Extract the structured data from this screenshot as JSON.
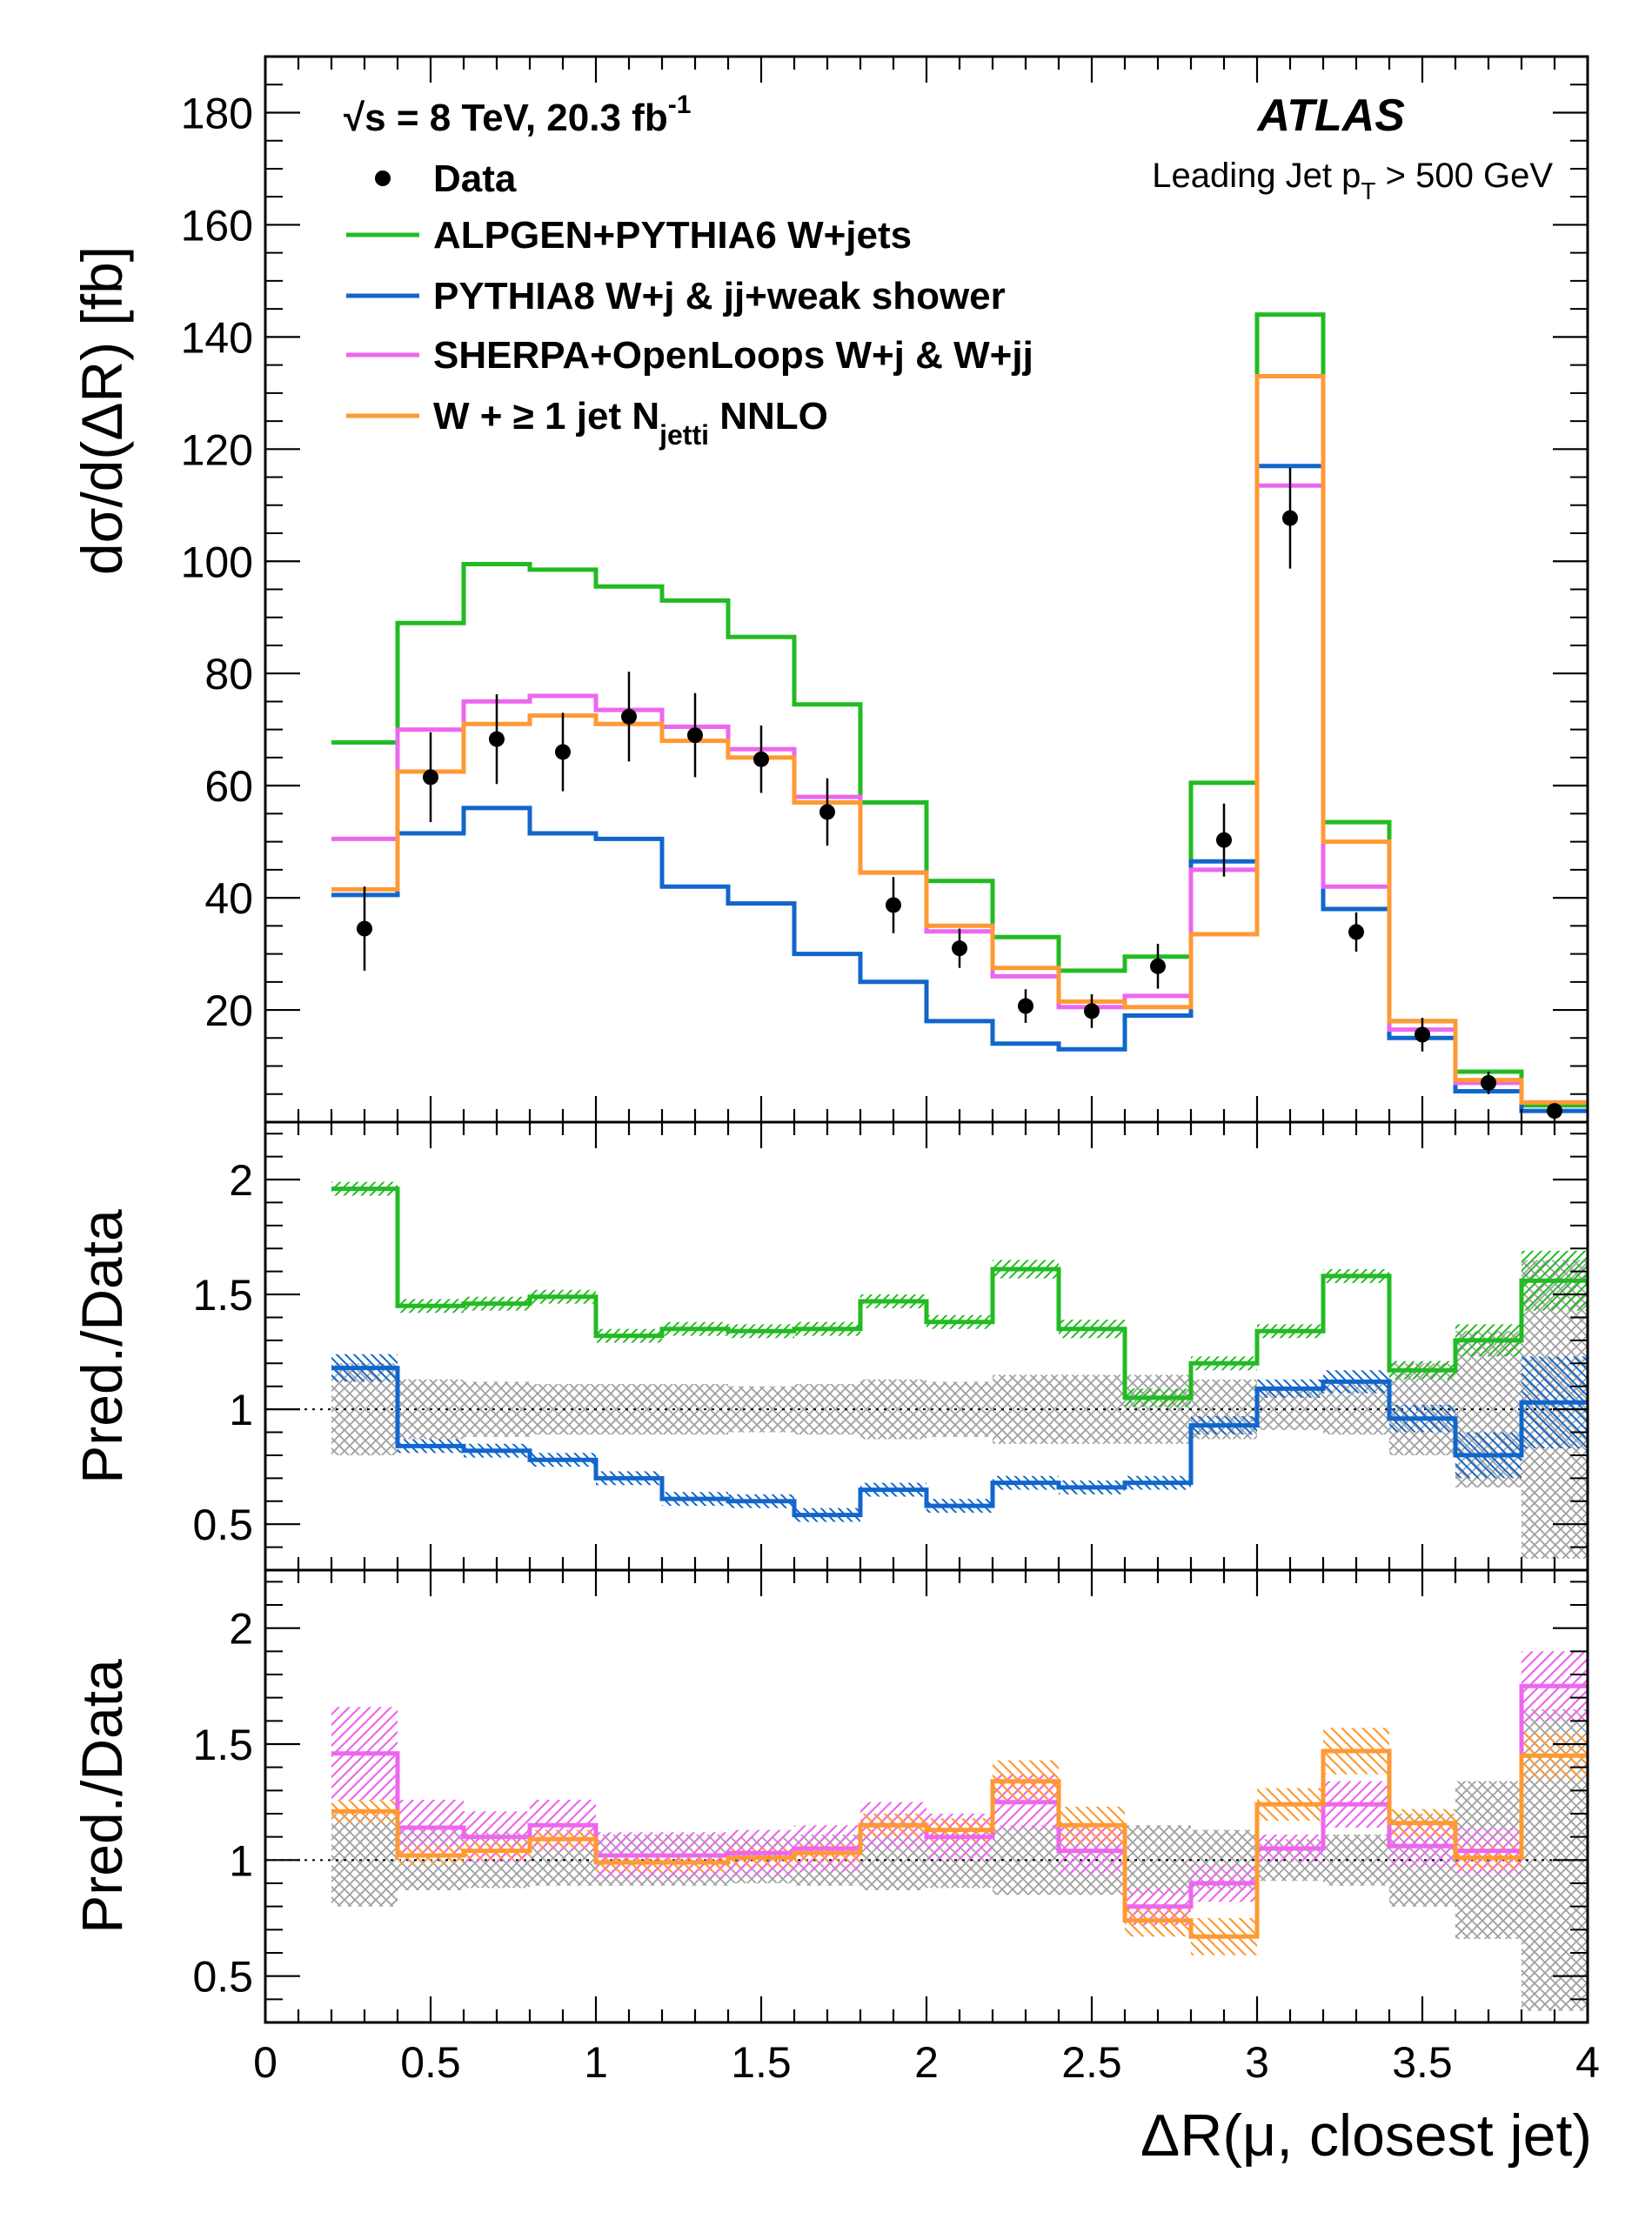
{
  "chart_data": {
    "type": "step-histogram",
    "bin_edges": [
      0.2,
      0.4,
      0.6,
      0.8,
      1.0,
      1.2,
      1.4,
      1.6,
      1.8,
      2.0,
      2.2,
      2.4,
      2.6,
      2.8,
      3.0,
      3.2,
      3.4,
      3.6,
      3.8,
      4.0
    ],
    "xlabel": "ΔR(μ, closest jet)",
    "xlim": [
      0,
      4
    ],
    "x_ticks": [
      "0",
      "0.5",
      "1",
      "1.5",
      "2",
      "2.5",
      "3",
      "3.5",
      "4"
    ],
    "x_tick_values": [
      0,
      0.5,
      1,
      1.5,
      2,
      2.5,
      3,
      3.5,
      4
    ],
    "main_panel": {
      "ylabel": "dσ/d(ΔR) [fb]",
      "ylim": [
        0,
        190
      ],
      "y_ticks": [
        "20",
        "40",
        "60",
        "80",
        "100",
        "120",
        "140",
        "160",
        "180"
      ],
      "y_tick_values": [
        20,
        40,
        60,
        80,
        100,
        120,
        140,
        160,
        180
      ],
      "annotation_energy": "√s = 8 TeV, 20.3 fb",
      "annotation_lumi_exp": "-1",
      "atlas_label": "ATLAS",
      "cut_label_prefix": "Leading Jet p",
      "cut_label_sub": "T",
      "cut_label_suffix": " > 500 GeV",
      "legend": [
        {
          "label": "Data",
          "kind": "marker"
        },
        {
          "label": "ALPGEN+PYTHIA6 W+jets",
          "kind": "line",
          "color": "#22bb22"
        },
        {
          "label": "PYTHIA8 W+j & jj+weak shower",
          "kind": "line",
          "color": "#1166cc"
        },
        {
          "label": "SHERPA+OpenLoops W+j & W+jj",
          "kind": "line",
          "color": "#ee66ee"
        },
        {
          "label": "W + ≥ 1 jet N",
          "label_sub": "jetti",
          "label_suffix": " NNLO",
          "kind": "line",
          "color": "#ff9933"
        }
      ],
      "data": {
        "name": "Data",
        "x": [
          0.3,
          0.5,
          0.7,
          0.9,
          1.1,
          1.3,
          1.5,
          1.7,
          1.9,
          2.1,
          2.3,
          2.5,
          2.7,
          2.9,
          3.1,
          3.3,
          3.5,
          3.7,
          3.9
        ],
        "y": [
          34.5,
          61.5,
          68.3,
          66.0,
          72.3,
          69.0,
          64.7,
          55.3,
          38.7,
          31.0,
          20.7,
          19.8,
          27.8,
          50.3,
          107.7,
          33.9,
          15.6,
          7.0,
          2.0
        ],
        "err": [
          7.5,
          8.0,
          8.0,
          7.0,
          8.0,
          7.5,
          6.0,
          6.0,
          5.0,
          3.5,
          3.0,
          3.0,
          4.0,
          6.5,
          9.0,
          3.5,
          3.0,
          2.0,
          1.0
        ]
      },
      "series": [
        {
          "name": "ALPGEN+PYTHIA6 W+jets",
          "color": "#22bb22",
          "values": [
            67.7,
            89.0,
            99.5,
            98.5,
            95.5,
            93.0,
            86.5,
            74.5,
            57.0,
            43.0,
            33.0,
            27.0,
            29.5,
            60.5,
            144.0,
            53.5,
            18.0,
            9.0,
            3.0
          ]
        },
        {
          "name": "PYTHIA8 W+j & jj+weak shower",
          "color": "#1166cc",
          "values": [
            40.5,
            51.5,
            56.0,
            51.5,
            50.5,
            42.0,
            39.0,
            30.0,
            25.0,
            18.0,
            14.0,
            13.0,
            19.0,
            46.5,
            117.0,
            38.0,
            15.0,
            5.5,
            2.0
          ]
        },
        {
          "name": "SHERPA+OpenLoops W+j & W+jj",
          "color": "#ee66ee",
          "values": [
            50.5,
            70.0,
            75.0,
            76.0,
            73.5,
            70.5,
            66.5,
            58.0,
            44.5,
            34.0,
            26.0,
            20.5,
            22.5,
            45.0,
            113.5,
            42.0,
            16.5,
            7.0,
            3.5
          ]
        },
        {
          "name": "W + ≥ 1 jet Njetti NNLO",
          "color": "#ff9933",
          "values": [
            41.5,
            62.5,
            71.0,
            72.5,
            71.0,
            68.0,
            65.0,
            57.0,
            44.5,
            35.0,
            27.5,
            21.5,
            20.5,
            33.5,
            133.0,
            50.0,
            18.0,
            7.5,
            3.5
          ]
        }
      ]
    },
    "ratio_panels": [
      {
        "ylabel": "Pred./Data",
        "ylim": [
          0.3,
          2.25
        ],
        "y_ticks": [
          "0.5",
          "1",
          "1.5",
          "2"
        ],
        "y_tick_values": [
          0.5,
          1,
          1.5,
          2
        ],
        "data_uncertainty_half_width": [
          0.2,
          0.13,
          0.12,
          0.11,
          0.11,
          0.11,
          0.1,
          0.11,
          0.13,
          0.12,
          0.15,
          0.15,
          0.15,
          0.13,
          0.09,
          0.11,
          0.2,
          0.34,
          0.65
        ],
        "series": [
          {
            "name": "ALPGEN+PYTHIA6 W+jets",
            "color": "#22bb22",
            "values": [
              1.96,
              1.45,
              1.46,
              1.49,
              1.32,
              1.35,
              1.34,
              1.35,
              1.47,
              1.38,
              1.61,
              1.35,
              1.05,
              1.2,
              1.34,
              1.58,
              1.17,
              1.3,
              1.56
            ],
            "band_half_width": [
              0.03,
              0.03,
              0.03,
              0.03,
              0.03,
              0.03,
              0.03,
              0.03,
              0.03,
              0.03,
              0.04,
              0.04,
              0.04,
              0.03,
              0.03,
              0.03,
              0.04,
              0.07,
              0.13
            ]
          },
          {
            "name": "PYTHIA8 W+j & jj+weak shower",
            "color": "#1166cc",
            "values": [
              1.18,
              0.84,
              0.82,
              0.78,
              0.7,
              0.61,
              0.6,
              0.54,
              0.65,
              0.58,
              0.68,
              0.66,
              0.68,
              0.93,
              1.09,
              1.12,
              0.96,
              0.8,
              1.03
            ],
            "band_half_width": [
              0.06,
              0.03,
              0.03,
              0.03,
              0.03,
              0.03,
              0.03,
              0.03,
              0.03,
              0.03,
              0.03,
              0.03,
              0.03,
              0.04,
              0.04,
              0.05,
              0.06,
              0.1,
              0.2
            ]
          }
        ]
      },
      {
        "ylabel": "Pred./Data",
        "ylim": [
          0.3,
          2.25
        ],
        "y_ticks": [
          "0.5",
          "1",
          "1.5",
          "2"
        ],
        "y_tick_values": [
          0.5,
          1,
          1.5,
          2
        ],
        "data_uncertainty_half_width": [
          0.2,
          0.13,
          0.12,
          0.11,
          0.11,
          0.11,
          0.1,
          0.11,
          0.13,
          0.12,
          0.15,
          0.15,
          0.15,
          0.13,
          0.09,
          0.11,
          0.2,
          0.34,
          0.65
        ],
        "series": [
          {
            "name": "SHERPA+OpenLoops W+j & W+jj",
            "color": "#ee66ee",
            "values": [
              1.46,
              1.14,
              1.1,
              1.15,
              1.02,
              1.02,
              1.03,
              1.05,
              1.15,
              1.1,
              1.25,
              1.04,
              0.8,
              0.9,
              1.05,
              1.24,
              1.06,
              1.04,
              1.75
            ],
            "band_half_width": [
              0.2,
              0.12,
              0.11,
              0.11,
              0.1,
              0.1,
              0.1,
              0.1,
              0.1,
              0.1,
              0.12,
              0.1,
              0.08,
              0.08,
              0.06,
              0.1,
              0.09,
              0.1,
              0.15
            ]
          },
          {
            "name": "W + ≥ 1 jet Njetti NNLO",
            "color": "#ff9933",
            "values": [
              1.21,
              1.02,
              1.04,
              1.09,
              0.99,
              0.99,
              1.01,
              1.03,
              1.15,
              1.13,
              1.34,
              1.15,
              0.74,
              0.67,
              1.24,
              1.47,
              1.16,
              1.01,
              1.45
            ],
            "band_half_width": [
              0.05,
              0.04,
              0.04,
              0.04,
              0.04,
              0.04,
              0.04,
              0.04,
              0.05,
              0.05,
              0.09,
              0.08,
              0.07,
              0.08,
              0.07,
              0.1,
              0.06,
              0.05,
              0.1
            ]
          }
        ]
      }
    ]
  }
}
